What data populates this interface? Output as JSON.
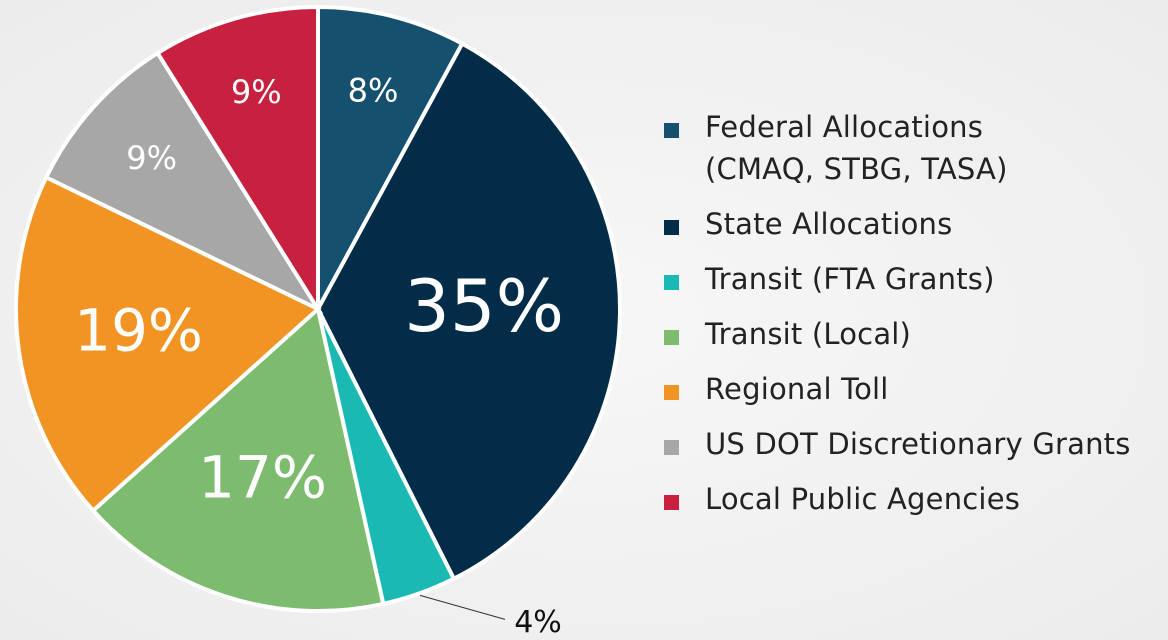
{
  "chart_data": {
    "type": "pie",
    "categories": [
      "Federal Allocations\n(CMAQ, STBG, TASA)",
      "State Allocations",
      "Transit (FTA Grants)",
      "Transit (Local)",
      "Regional Toll",
      "US DOT Discretionary Grants",
      "Local Public Agencies"
    ],
    "values": [
      8,
      35,
      4,
      17,
      19,
      9,
      9
    ],
    "value_labels": [
      "8%",
      "35%",
      "4%",
      "17%",
      "19%",
      "9%",
      "9%"
    ],
    "colors": [
      "#16506f",
      "#022c47",
      "#1bb9b4",
      "#7dbb6f",
      "#f29423",
      "#a7a7a7",
      "#c8203f"
    ],
    "legend": "right"
  }
}
